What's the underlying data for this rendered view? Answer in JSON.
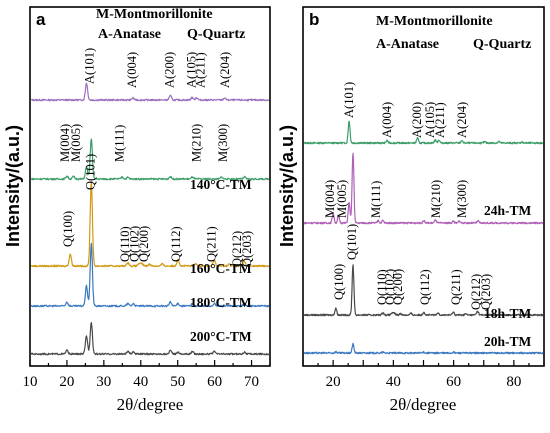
{
  "chart_data": [
    {
      "panel": "a",
      "type": "line",
      "title": "",
      "xlabel": "2θ/degree",
      "ylabel": "Intensity/(a.u.)",
      "xlim": [
        10,
        75
      ],
      "xticks": [
        "10",
        "20",
        "30",
        "40",
        "50",
        "60",
        "70"
      ],
      "legend": [
        "M-Montmorillonite",
        "A-Anatase",
        "Q-Quartz"
      ],
      "series": [
        {
          "name": "",
          "color": "#9b6fbf",
          "peaks": [
            [
              25.3,
              0.85
            ],
            [
              37.9,
              0.1
            ],
            [
              48.0,
              0.22
            ],
            [
              53.9,
              0.12
            ],
            [
              55.1,
              0.12
            ],
            [
              62.7,
              0.1
            ]
          ],
          "peak_labels": [
            "A(101)",
            "A(004)",
            "A(200)",
            "A(105)",
            "A(211)",
            "A(204)"
          ]
        },
        {
          "name": "140°C-TM",
          "color": "#3d9e6b",
          "peaks": [
            [
              20.0,
              0.15
            ],
            [
              21.8,
              0.12
            ],
            [
              25.3,
              0.6
            ],
            [
              26.6,
              2.0
            ],
            [
              35.0,
              0.1
            ],
            [
              36.5,
              0.08
            ],
            [
              48.0,
              0.12
            ],
            [
              54.0,
              0.1
            ],
            [
              61.9,
              0.1
            ],
            [
              68.1,
              0.1
            ]
          ],
          "peak_labels": [
            "M(004)",
            "M(005)",
            "M(111)",
            "M(210)",
            "M(300)"
          ]
        },
        {
          "name": "160°C-TM",
          "color": "#d09a12",
          "peaks": [
            [
              20.9,
              0.6
            ],
            [
              26.6,
              4.2
            ],
            [
              36.5,
              0.18
            ],
            [
              39.5,
              0.12
            ],
            [
              40.3,
              0.12
            ],
            [
              42.4,
              0.1
            ],
            [
              45.8,
              0.1
            ],
            [
              50.1,
              0.35
            ],
            [
              54.9,
              0.12
            ],
            [
              59.9,
              0.3
            ],
            [
              64.0,
              0.1
            ],
            [
              67.7,
              0.15
            ],
            [
              68.1,
              0.18
            ]
          ],
          "peak_labels": [
            "Q(100)",
            "Q(101)",
            "Q(110)",
            "Q(102)",
            "Q(200)",
            "Q(112)",
            "Q(211)",
            "Q(212)",
            "Q(203)"
          ]
        },
        {
          "name": "180°C-TM",
          "color": "#3a78c0",
          "peaks": [
            [
              20.0,
              0.2
            ],
            [
              25.3,
              1.0
            ],
            [
              26.6,
              3.1
            ],
            [
              36.5,
              0.12
            ],
            [
              38.0,
              0.12
            ],
            [
              48.0,
              0.2
            ],
            [
              50.1,
              0.12
            ],
            [
              54.0,
              0.12
            ],
            [
              59.9,
              0.12
            ],
            [
              68.1,
              0.12
            ]
          ]
        },
        {
          "name": "200°C-TM",
          "color": "#4a4a4a",
          "peaks": [
            [
              20.0,
              0.18
            ],
            [
              25.3,
              0.9
            ],
            [
              26.6,
              1.6
            ],
            [
              36.5,
              0.12
            ],
            [
              38.0,
              0.12
            ],
            [
              48.0,
              0.18
            ],
            [
              50.1,
              0.1
            ],
            [
              54.0,
              0.12
            ],
            [
              59.9,
              0.12
            ],
            [
              68.1,
              0.1
            ]
          ]
        }
      ]
    },
    {
      "panel": "b",
      "type": "line",
      "title": "",
      "xlabel": "2θ/degree",
      "ylabel": "Intensity/(a.u.)",
      "xlim": [
        10,
        90
      ],
      "xticks": [
        "20",
        "40",
        "60",
        "80"
      ],
      "legend": [
        "M-Montmorillonite",
        "A-Anatase",
        "Q-Quartz"
      ],
      "series": [
        {
          "name": "",
          "color": "#3d9e6b",
          "peaks": [
            [
              25.3,
              1.1
            ],
            [
              37.9,
              0.12
            ],
            [
              48.0,
              0.25
            ],
            [
              53.9,
              0.15
            ],
            [
              55.1,
              0.15
            ],
            [
              62.7,
              0.12
            ],
            [
              70.3,
              0.06
            ],
            [
              75.0,
              0.08
            ],
            [
              82.7,
              0.05
            ]
          ],
          "peak_labels": [
            "A(101)",
            "A(004)",
            "A(200)",
            "A(105)",
            "A(211)",
            "A(204)"
          ]
        },
        {
          "name": "24h-TM",
          "color": "#b060b8",
          "peaks": [
            [
              20.0,
              0.5
            ],
            [
              21.8,
              0.35
            ],
            [
              25.3,
              1.0
            ],
            [
              26.6,
              3.5
            ],
            [
              35.0,
              0.12
            ],
            [
              36.5,
              0.12
            ],
            [
              50.1,
              0.12
            ],
            [
              54.0,
              0.15
            ],
            [
              59.9,
              0.1
            ],
            [
              61.9,
              0.1
            ],
            [
              68.1,
              0.1
            ]
          ],
          "peak_labels": [
            "M(004)",
            "M(005)",
            "M(111)",
            "M(210)",
            "M(300)"
          ]
        },
        {
          "name": "18h-TM",
          "color": "#4a4a4a",
          "peaks": [
            [
              20.9,
              0.35
            ],
            [
              26.6,
              2.5
            ],
            [
              36.5,
              0.12
            ],
            [
              39.5,
              0.1
            ],
            [
              40.3,
              0.1
            ],
            [
              42.4,
              0.08
            ],
            [
              45.8,
              0.08
            ],
            [
              50.1,
              0.15
            ],
            [
              54.9,
              0.1
            ],
            [
              59.9,
              0.15
            ],
            [
              64.0,
              0.06
            ],
            [
              67.7,
              0.1
            ],
            [
              68.1,
              0.12
            ]
          ],
          "peak_labels": [
            "Q(100)",
            "Q(101)",
            "Q(110)",
            "Q(102)",
            "Q(200)",
            "Q(112)",
            "Q(211)",
            "Q(212)",
            "Q(203)"
          ]
        },
        {
          "name": "20h-TM",
          "color": "#3a78c0",
          "peaks": [
            [
              20.9,
              0.06
            ],
            [
              26.6,
              0.45
            ],
            [
              36.5,
              0.04
            ],
            [
              50.1,
              0.04
            ],
            [
              59.9,
              0.04
            ]
          ]
        }
      ]
    }
  ]
}
